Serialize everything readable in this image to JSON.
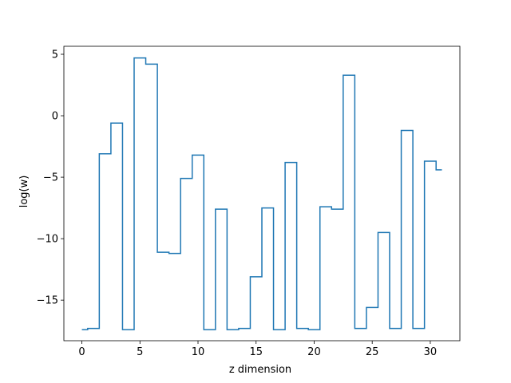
{
  "chart_data": {
    "type": "line",
    "drawstyle": "steps-mid",
    "title": "",
    "xlabel": "z dimension",
    "ylabel": "log(w)",
    "xlim": [
      -1.55,
      32.55
    ],
    "ylim": [
      -18.3,
      5.65
    ],
    "xticks": [
      0,
      5,
      10,
      15,
      20,
      25,
      30
    ],
    "yticks": [
      -15,
      -10,
      -5,
      0,
      5
    ],
    "xtick_labels": [
      "0",
      "5",
      "10",
      "15",
      "20",
      "25",
      "30"
    ],
    "ytick_labels": [
      "−15",
      "−10",
      "−5",
      "0",
      "5"
    ],
    "grid": false,
    "series": [
      {
        "color": "#1f77b4",
        "x": [
          0,
          1,
          2,
          3,
          4,
          5,
          6,
          7,
          8,
          9,
          10,
          11,
          12,
          13,
          14,
          15,
          16,
          17,
          18,
          19,
          20,
          21,
          22,
          23,
          24,
          25,
          26,
          27,
          28,
          29,
          30,
          31
        ],
        "y": [
          -17.4,
          -17.3,
          -3.1,
          -0.6,
          -17.4,
          4.7,
          4.2,
          -11.1,
          -11.2,
          -5.1,
          -3.2,
          -17.4,
          -7.6,
          -17.4,
          -17.3,
          -13.1,
          -7.5,
          -17.4,
          -3.8,
          -17.3,
          -17.4,
          -7.4,
          -7.6,
          3.3,
          -17.3,
          -15.6,
          -9.5,
          -17.3,
          -1.2,
          -17.3,
          -3.7,
          -4.4
        ]
      }
    ]
  }
}
